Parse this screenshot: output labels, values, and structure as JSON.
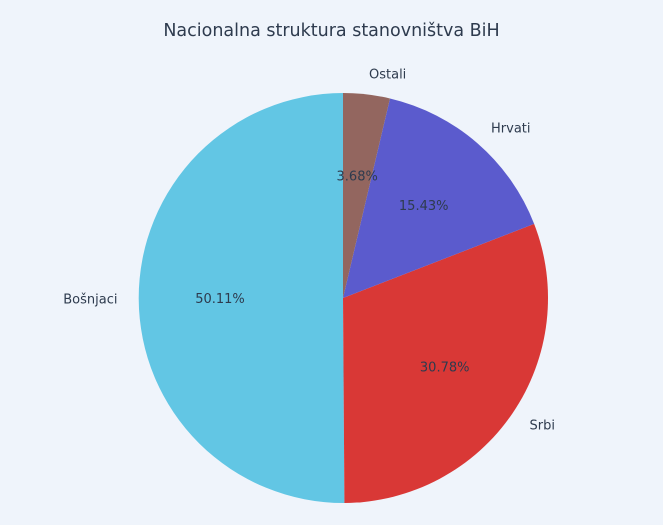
{
  "chart_data": {
    "type": "pie",
    "title": "Nacionalna struktura stanovništva BiH",
    "categories": [
      "Bošnjaci",
      "Srbi",
      "Hrvati",
      "Ostali"
    ],
    "values": [
      50.11,
      30.78,
      15.43,
      3.68
    ],
    "pct_labels": [
      "50.11%",
      "30.78%",
      "15.43%",
      "3.68%"
    ],
    "colors": [
      "#62C6E4",
      "#D93836",
      "#5B5BCD",
      "#93665F"
    ],
    "start_angle_deg": 90,
    "direction": "counterclockwise",
    "legend": "none",
    "background_color": "#EFF4FB",
    "text_color": "#2E3B4E"
  }
}
